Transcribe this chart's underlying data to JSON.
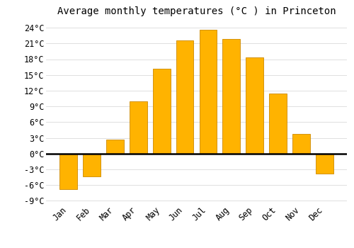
{
  "title": "Average monthly temperatures (°C ) in Princeton",
  "months": [
    "Jan",
    "Feb",
    "Mar",
    "Apr",
    "May",
    "Jun",
    "Jul",
    "Aug",
    "Sep",
    "Oct",
    "Nov",
    "Dec"
  ],
  "values": [
    -6.8,
    -4.3,
    2.6,
    10.0,
    16.2,
    21.6,
    23.6,
    21.9,
    18.4,
    11.5,
    3.8,
    -3.8
  ],
  "bar_color": "#FFB300",
  "bar_edge_color": "#CC8800",
  "background_color": "#ffffff",
  "grid_color": "#e0e0e0",
  "yticks": [
    -9,
    -6,
    -3,
    0,
    3,
    6,
    9,
    12,
    15,
    18,
    21,
    24
  ],
  "ylim": [
    -9.5,
    25.5
  ],
  "title_fontsize": 10,
  "tick_fontsize": 8.5,
  "font_family": "monospace"
}
